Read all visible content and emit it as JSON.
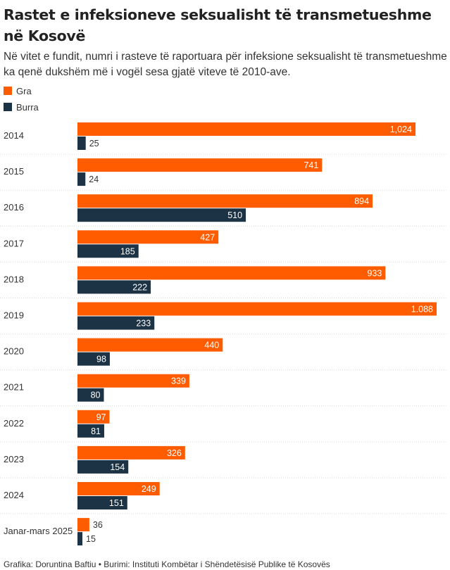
{
  "header": {
    "title": "Rastet e infeksioneve seksualisht të transmetueshme në Kosovë",
    "subtitle": "Në vitet e fundit, numri i rasteve të raportuara për infeksione seksualisht të transmetueshme ka qenë dukshëm më i vogël sesa gjatë viteve të 2010-ave."
  },
  "legend": [
    {
      "label": "Gra",
      "color": "#ff5c00"
    },
    {
      "label": "Burra",
      "color": "#1c3346"
    }
  ],
  "footer": {
    "text": "Grafika: Doruntina Baftiu • Burimi: Instituti Kombëtar i Shëndetësisë Publike të Kosovës"
  },
  "chart_data": {
    "type": "bar",
    "orientation": "horizontal",
    "grouped": true,
    "categories": [
      "2014",
      "2015",
      "2016",
      "2017",
      "2018",
      "2019",
      "2020",
      "2021",
      "2022",
      "2023",
      "2024",
      "Janar-mars 2025"
    ],
    "series": [
      {
        "name": "Gra",
        "color": "#ff5c00",
        "values": [
          1024,
          741,
          894,
          427,
          933,
          1088,
          440,
          339,
          97,
          326,
          249,
          36
        ],
        "labels": [
          "1,024",
          "741",
          "894",
          "427",
          "933",
          "1.088",
          "440",
          "339",
          "97",
          "326",
          "249",
          "36"
        ]
      },
      {
        "name": "Burra",
        "color": "#1c3346",
        "values": [
          25,
          24,
          510,
          185,
          222,
          233,
          98,
          80,
          81,
          154,
          151,
          15
        ],
        "labels": [
          "25",
          "24",
          "510",
          "185",
          "222",
          "233",
          "98",
          "80",
          "81",
          "154",
          "151",
          "15"
        ]
      }
    ],
    "xlim": [
      0,
      1088
    ],
    "grid": false,
    "legend_position": "top-left",
    "separators": true
  }
}
